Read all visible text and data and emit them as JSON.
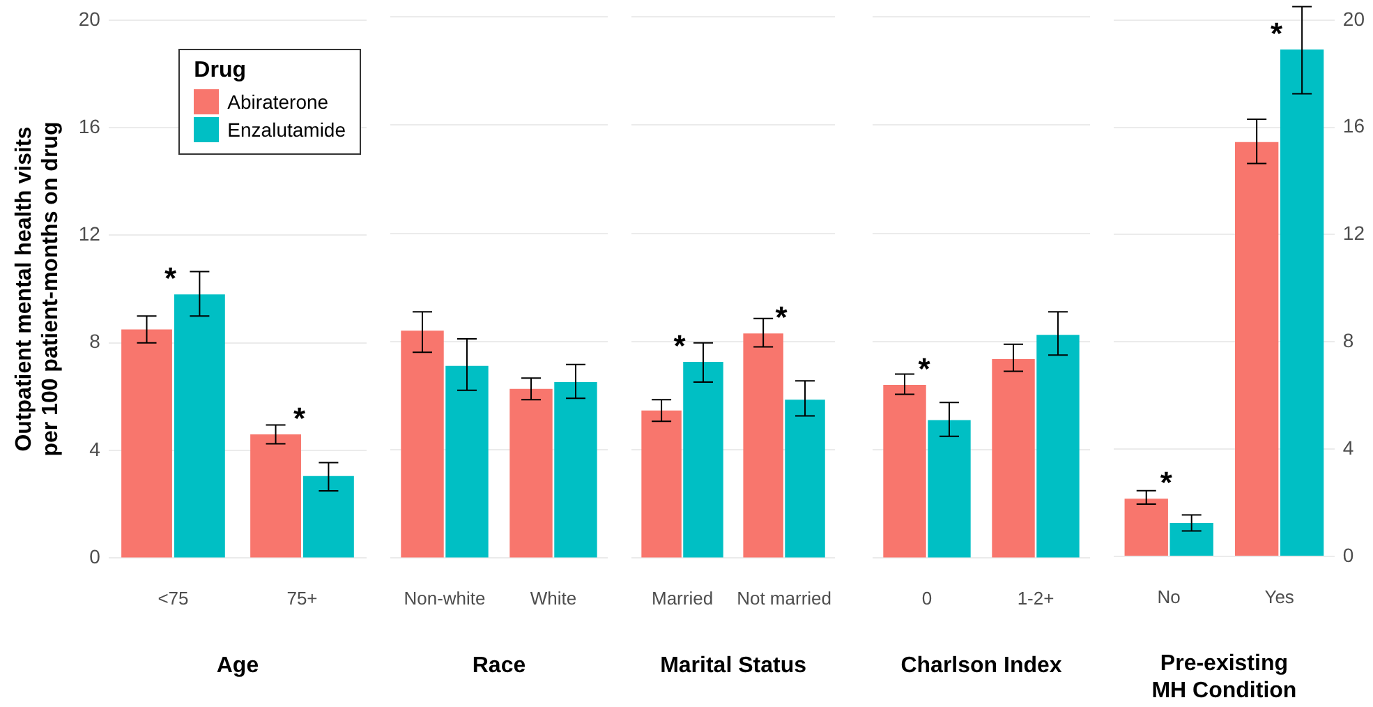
{
  "chart_data": [
    {
      "type": "bar",
      "xlabel": "Age",
      "ylabel": "Outpatient mental health visits\nper 100 patient-months on drug",
      "legend_title": "Drug",
      "legend": "top right",
      "grid": "y",
      "categories": [
        "<75",
        "75+"
      ],
      "ylim": [
        0,
        20
      ],
      "yticks": [
        0,
        4,
        8,
        12,
        16,
        20
      ],
      "series": [
        {
          "name": "Abiraterone",
          "color": "#f8766d",
          "values": [
            8.5,
            4.6
          ],
          "errors": [
            [
              8.0,
              9.0
            ],
            [
              4.25,
              4.95
            ]
          ]
        },
        {
          "name": "Enzalutamide",
          "color": "#00bfc4",
          "values": [
            9.8,
            3.05
          ],
          "errors": [
            [
              9.0,
              10.65
            ],
            [
              2.5,
              3.55
            ]
          ]
        }
      ],
      "annotations": [
        {
          "text": "*",
          "x": "<75",
          "y": 9.8
        },
        {
          "text": "*",
          "x": "75+",
          "y": 4.6
        }
      ]
    },
    {
      "type": "bar",
      "xlabel": "Race",
      "grid": "y",
      "tick_labels": "x",
      "categories": [
        "Non-white",
        "White"
      ],
      "ylim": [
        0,
        20
      ],
      "yticks": [
        0,
        4,
        8,
        12,
        16,
        20
      ],
      "series": [
        {
          "color": "#f8766d",
          "values": [
            8.4,
            6.25
          ],
          "errors": [
            [
              7.6,
              9.1
            ],
            [
              5.85,
              6.65
            ]
          ]
        },
        {
          "color": "#00bfc4",
          "values": [
            7.1,
            6.5
          ],
          "errors": [
            [
              6.2,
              8.1
            ],
            [
              5.9,
              7.15
            ]
          ]
        }
      ]
    },
    {
      "type": "bar",
      "xlabel": "Marital Status",
      "grid": "y",
      "tick_labels": "x",
      "categories": [
        "Married",
        "Not married"
      ],
      "ylim": [
        0,
        20
      ],
      "yticks": [
        0,
        4,
        8,
        12,
        16,
        20
      ],
      "series": [
        {
          "color": "#f8766d",
          "values": [
            5.45,
            8.3
          ],
          "errors": [
            [
              5.05,
              5.85
            ],
            [
              7.8,
              8.85
            ]
          ]
        },
        {
          "color": "#00bfc4",
          "values": [
            7.25,
            5.85
          ],
          "errors": [
            [
              6.5,
              7.95
            ],
            [
              5.25,
              6.55
            ]
          ]
        }
      ],
      "annotations": [
        {
          "text": "*",
          "x": "Married",
          "y": 7.25
        },
        {
          "text": "*",
          "x": "Not married",
          "y": 8.3
        }
      ]
    },
    {
      "type": "bar",
      "xlabel": "Charlson Index",
      "grid": "y",
      "tick_labels": "x",
      "categories": [
        "0",
        "1-2+"
      ],
      "ylim": [
        0,
        20
      ],
      "yticks": [
        0,
        4,
        8,
        12,
        16,
        20
      ],
      "series": [
        {
          "color": "#f8766d",
          "values": [
            6.4,
            7.35
          ],
          "errors": [
            [
              6.05,
              6.8
            ],
            [
              6.9,
              7.9
            ]
          ]
        },
        {
          "color": "#00bfc4",
          "values": [
            5.1,
            8.25
          ],
          "errors": [
            [
              4.5,
              5.75
            ],
            [
              7.5,
              9.1
            ]
          ]
        }
      ],
      "annotations": [
        {
          "text": "*",
          "x": "0",
          "y": 6.4
        }
      ]
    },
    {
      "type": "bar",
      "xlabel": "Pre-existing\nMH Condition",
      "grid": "y",
      "categories": [
        "No",
        "Yes"
      ],
      "y2lim": [
        0,
        20
      ],
      "y2ticks": [
        0,
        4,
        8,
        12,
        16,
        20
      ],
      "series": [
        {
          "color": "#f8766d",
          "axis": "y2",
          "values": [
            2.15,
            15.45
          ],
          "errors": [
            [
              1.95,
              2.45
            ],
            [
              14.65,
              16.3
            ]
          ]
        },
        {
          "color": "#00bfc4",
          "axis": "y2",
          "values": [
            1.25,
            18.9
          ],
          "errors": [
            [
              0.95,
              1.55
            ],
            [
              17.25,
              20.5
            ]
          ]
        }
      ],
      "annotations": [
        "*",
        "*"
      ]
    }
  ]
}
